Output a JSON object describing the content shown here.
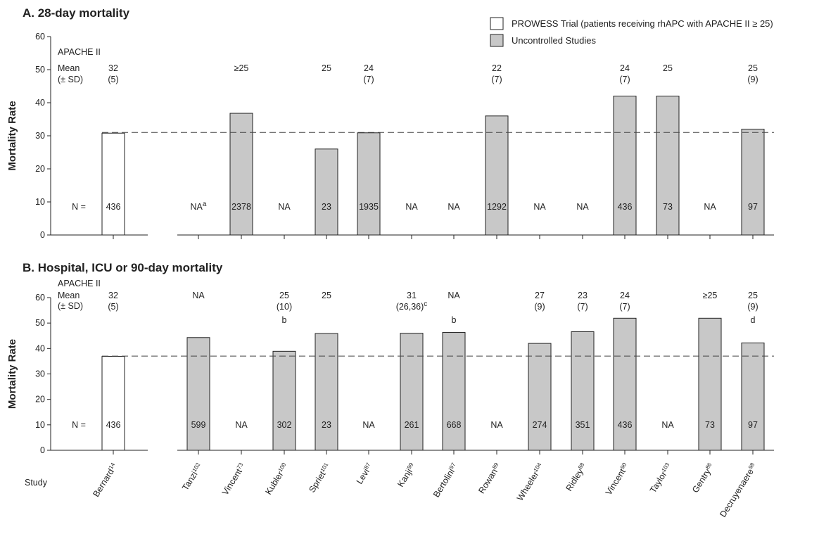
{
  "legend": {
    "prowess_label": "PROWESS Trial (patients receiving rhAPC with APACHE II ≥ 25)",
    "uncontrolled_label": "Uncontrolled Studies"
  },
  "colors": {
    "prowess_fill": "#ffffff",
    "uncontrolled_fill": "#c8c8c8",
    "outline": "#222222"
  },
  "study_axis_label": "Study",
  "studies": [
    {
      "name": "Bernard",
      "ref": "14"
    },
    {
      "name": "Tanzi",
      "ref": "102"
    },
    {
      "name": "Vincent",
      "ref": "73"
    },
    {
      "name": "Kubler",
      "ref": "100"
    },
    {
      "name": "Spriet",
      "ref": "101"
    },
    {
      "name": "Levi",
      "ref": "87"
    },
    {
      "name": "Kanji",
      "ref": "99"
    },
    {
      "name": "Bertolini",
      "ref": "97"
    },
    {
      "name": "Rowan",
      "ref": "89"
    },
    {
      "name": "Wheeler",
      "ref": "104"
    },
    {
      "name": "Ridley",
      "ref": "88"
    },
    {
      "name": "Vincent",
      "ref": "90"
    },
    {
      "name": "Taylor",
      "ref": "103"
    },
    {
      "name": "Gentry",
      "ref": "86"
    },
    {
      "name": "Decruyenaere",
      "ref": "98"
    }
  ],
  "chart_data": [
    {
      "type": "bar",
      "title": "A. 28-day mortality",
      "ylabel": "Mortality Rate",
      "ylim": [
        0,
        60
      ],
      "yticks": [
        0,
        10,
        20,
        30,
        40,
        50,
        60
      ],
      "reference_line": 31,
      "apache_header": [
        "APACHE II",
        "Mean",
        "(± SD)"
      ],
      "n_label": "N =",
      "bars": [
        {
          "value": 30.8,
          "n": "436",
          "apache": "32",
          "sd": "(5)",
          "prowess": true
        },
        {
          "value": null,
          "n": "NA",
          "n_sup": "a"
        },
        {
          "value": 36.8,
          "n": "2378",
          "apache": "≥25"
        },
        {
          "value": null,
          "n": "NA"
        },
        {
          "value": 26,
          "n": "23",
          "apache": "25"
        },
        {
          "value": 30.9,
          "n": "1935",
          "apache": "24",
          "sd": "(7)"
        },
        {
          "value": null,
          "n": "NA"
        },
        {
          "value": null,
          "n": "NA"
        },
        {
          "value": 36,
          "n": "1292",
          "apache": "22",
          "sd": "(7)"
        },
        {
          "value": null,
          "n": "NA"
        },
        {
          "value": null,
          "n": "NA"
        },
        {
          "value": 42,
          "n": "436",
          "apache": "24",
          "sd": "(7)"
        },
        {
          "value": 42,
          "n": "73",
          "apache": "25"
        },
        {
          "value": null,
          "n": "NA"
        },
        {
          "value": 32,
          "n": "97",
          "apache": "25",
          "sd": "(9)"
        }
      ]
    },
    {
      "type": "bar",
      "title": "B. Hospital, ICU or 90-day mortality",
      "ylabel": "Mortality Rate",
      "ylim": [
        0,
        60
      ],
      "yticks": [
        0,
        10,
        20,
        30,
        40,
        50,
        60
      ],
      "reference_line": 37,
      "apache_header": [
        "APACHE II",
        "Mean",
        "(± SD)"
      ],
      "n_label": "N =",
      "bars": [
        {
          "value": 36.9,
          "n": "436",
          "apache": "32",
          "sd": "(5)",
          "prowess": true
        },
        {
          "value": 44.3,
          "n": "599",
          "apache": "NA"
        },
        {
          "value": null,
          "n": "NA"
        },
        {
          "value": 38.9,
          "n": "302",
          "apache": "25",
          "sd": "(10)",
          "note": "b"
        },
        {
          "value": 45.9,
          "n": "23",
          "apache": "25"
        },
        {
          "value": null,
          "n": "NA"
        },
        {
          "value": 46,
          "n": "261",
          "apache": "31",
          "sd": "(26,36)",
          "sd_sup": "c"
        },
        {
          "value": 46.3,
          "n": "668",
          "apache": "NA",
          "note": "b"
        },
        {
          "value": null,
          "n": "NA"
        },
        {
          "value": 42,
          "n": "274",
          "apache": "27",
          "sd": "(9)"
        },
        {
          "value": 46.6,
          "n": "351",
          "apache": "23",
          "sd": "(7)"
        },
        {
          "value": 51.9,
          "n": "436",
          "apache": "24",
          "sd": "(7)"
        },
        {
          "value": null,
          "n": "NA"
        },
        {
          "value": 51.9,
          "n": "73",
          "apache": "≥25"
        },
        {
          "value": 42.2,
          "n": "97",
          "apache": "25",
          "sd": "(9)",
          "note": "d"
        }
      ]
    }
  ]
}
